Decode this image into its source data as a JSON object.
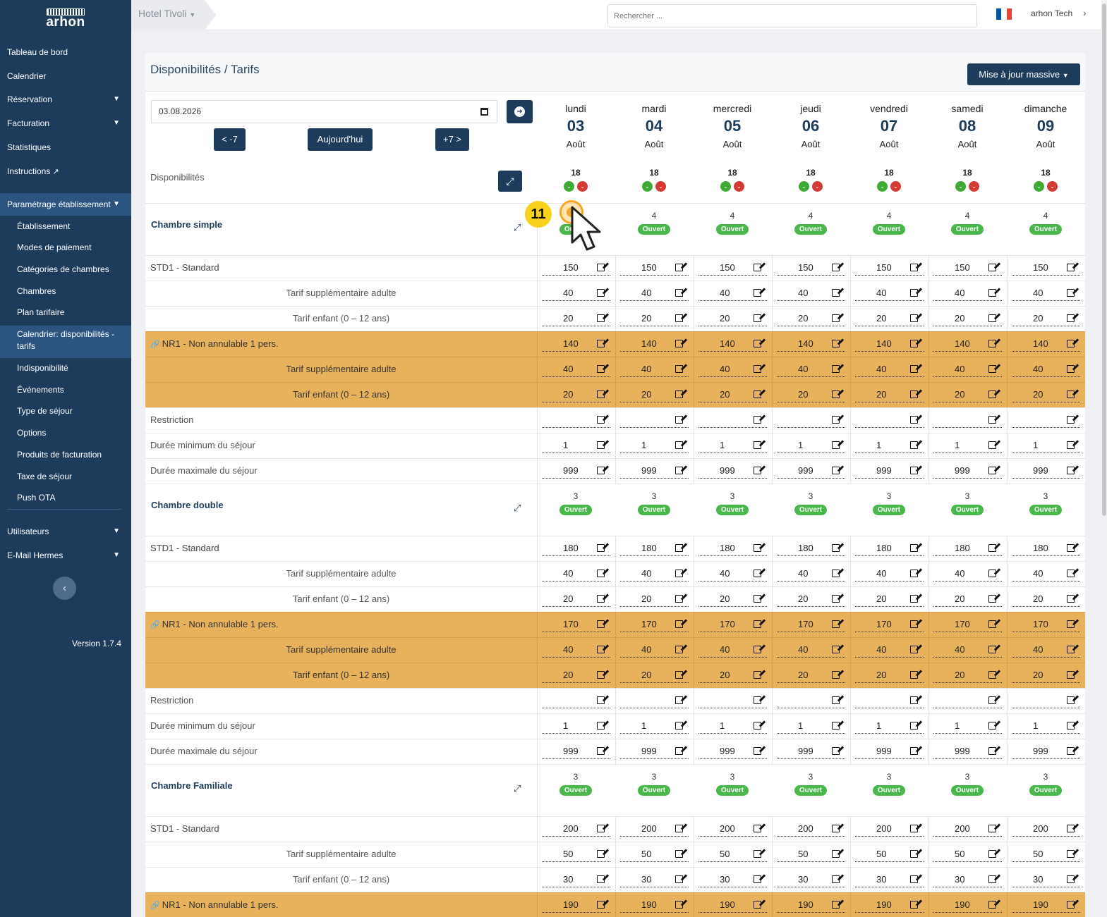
{
  "app": {
    "logo": "arhon",
    "version": "Version 1.7.4"
  },
  "sidebar": {
    "items": [
      {
        "label": "Tableau de bord"
      },
      {
        "label": "Calendrier"
      },
      {
        "label": "Réservation",
        "expandable": true
      },
      {
        "label": "Facturation",
        "expandable": true
      },
      {
        "label": "Statistiques"
      },
      {
        "label": "Instructions",
        "external": true
      }
    ],
    "section": {
      "label": "Paramétrage établissement",
      "expanded": true
    },
    "subitems": [
      {
        "label": "Établissement"
      },
      {
        "label": "Modes de paiement"
      },
      {
        "label": "Catégories de chambres"
      },
      {
        "label": "Chambres"
      },
      {
        "label": "Plan tarifaire"
      },
      {
        "label": "Calendrier: disponibilités - tarifs",
        "active": true
      },
      {
        "label": "Indisponibilité"
      },
      {
        "label": "Événements"
      },
      {
        "label": "Type de séjour"
      },
      {
        "label": "Options"
      },
      {
        "label": "Produits de facturation"
      },
      {
        "label": "Taxe de séjour"
      },
      {
        "label": "Push OTA"
      }
    ],
    "bottom_items": [
      {
        "label": "Utilisateurs",
        "expandable": true
      },
      {
        "label": "E-Mail Hermes",
        "expandable": true
      }
    ]
  },
  "topbar": {
    "hotel": "Hotel Tivoli",
    "search_placeholder": "Rechercher ...",
    "user": "arhon Tech",
    "flag_colors": [
      "#0055a4",
      "#ffffff",
      "#ef4135"
    ]
  },
  "page": {
    "title": "Disponibilités / Tarifs",
    "mass_update": "Mise à jour massive",
    "date": "03.08.2026",
    "prev": "< -7",
    "today": "Aujourd'hui",
    "next": "+7 >",
    "dispo_label": "Disponibilités",
    "status_open": "Ouvert"
  },
  "days": [
    {
      "name": "lundi",
      "num": "03",
      "month": "Août",
      "dispo": "18"
    },
    {
      "name": "mardi",
      "num": "04",
      "month": "Août",
      "dispo": "18"
    },
    {
      "name": "mercredi",
      "num": "05",
      "month": "Août",
      "dispo": "18"
    },
    {
      "name": "jeudi",
      "num": "06",
      "month": "Août",
      "dispo": "18"
    },
    {
      "name": "vendredi",
      "num": "07",
      "month": "Août",
      "dispo": "18"
    },
    {
      "name": "samedi",
      "num": "08",
      "month": "Août",
      "dispo": "18"
    },
    {
      "name": "dimanche",
      "num": "09",
      "month": "Août",
      "dispo": "18"
    }
  ],
  "rooms": [
    {
      "name": "Chambre simple",
      "counts": [
        "",
        "4",
        "4",
        "4",
        "4",
        "4",
        "4"
      ],
      "rows": [
        {
          "label": "STD1 - Standard",
          "type": "rate",
          "values": [
            "150",
            "150",
            "150",
            "150",
            "150",
            "150",
            "150"
          ]
        },
        {
          "label": "Tarif supplémentaire adulte",
          "type": "sub",
          "values": [
            "40",
            "40",
            "40",
            "40",
            "40",
            "40",
            "40"
          ]
        },
        {
          "label": "Tarif enfant (0 – 12 ans)",
          "type": "sub",
          "values": [
            "20",
            "20",
            "20",
            "20",
            "20",
            "20",
            "20"
          ]
        },
        {
          "label": "NR1 - Non annulable 1 pers.",
          "type": "rate",
          "linked": true,
          "orange": true,
          "values": [
            "140",
            "140",
            "140",
            "140",
            "140",
            "140",
            "140"
          ]
        },
        {
          "label": "Tarif supplémentaire adulte",
          "type": "sub",
          "orange": true,
          "values": [
            "40",
            "40",
            "40",
            "40",
            "40",
            "40",
            "40"
          ]
        },
        {
          "label": "Tarif enfant (0 – 12 ans)",
          "type": "sub",
          "orange": true,
          "values": [
            "20",
            "20",
            "20",
            "20",
            "20",
            "20",
            "20"
          ]
        },
        {
          "label": "Restriction",
          "type": "rest",
          "values": [
            "",
            "",
            "",
            "",
            "",
            "",
            ""
          ]
        },
        {
          "label": "Durée minimum du séjour",
          "type": "rest",
          "values": [
            "1",
            "1",
            "1",
            "1",
            "1",
            "1",
            "1"
          ]
        },
        {
          "label": "Durée maximale du séjour",
          "type": "rest",
          "values": [
            "999",
            "999",
            "999",
            "999",
            "999",
            "999",
            "999"
          ]
        }
      ]
    },
    {
      "name": "Chambre double",
      "counts": [
        "3",
        "3",
        "3",
        "3",
        "3",
        "3",
        "3"
      ],
      "rows": [
        {
          "label": "STD1 - Standard",
          "type": "rate",
          "values": [
            "180",
            "180",
            "180",
            "180",
            "180",
            "180",
            "180"
          ]
        },
        {
          "label": "Tarif supplémentaire adulte",
          "type": "sub",
          "values": [
            "40",
            "40",
            "40",
            "40",
            "40",
            "40",
            "40"
          ]
        },
        {
          "label": "Tarif enfant (0 – 12 ans)",
          "type": "sub",
          "values": [
            "20",
            "20",
            "20",
            "20",
            "20",
            "20",
            "20"
          ]
        },
        {
          "label": "NR1 - Non annulable 1 pers.",
          "type": "rate",
          "linked": true,
          "orange": true,
          "values": [
            "170",
            "170",
            "170",
            "170",
            "170",
            "170",
            "170"
          ]
        },
        {
          "label": "Tarif supplémentaire adulte",
          "type": "sub",
          "orange": true,
          "values": [
            "40",
            "40",
            "40",
            "40",
            "40",
            "40",
            "40"
          ]
        },
        {
          "label": "Tarif enfant (0 – 12 ans)",
          "type": "sub",
          "orange": true,
          "values": [
            "20",
            "20",
            "20",
            "20",
            "20",
            "20",
            "20"
          ]
        },
        {
          "label": "Restriction",
          "type": "rest",
          "values": [
            "",
            "",
            "",
            "",
            "",
            "",
            ""
          ]
        },
        {
          "label": "Durée minimum du séjour",
          "type": "rest",
          "values": [
            "1",
            "1",
            "1",
            "1",
            "1",
            "1",
            "1"
          ]
        },
        {
          "label": "Durée maximale du séjour",
          "type": "rest",
          "values": [
            "999",
            "999",
            "999",
            "999",
            "999",
            "999",
            "999"
          ]
        }
      ]
    },
    {
      "name": "Chambre Familiale",
      "counts": [
        "3",
        "3",
        "3",
        "3",
        "3",
        "3",
        "3"
      ],
      "rows": [
        {
          "label": "STD1 - Standard",
          "type": "rate",
          "values": [
            "200",
            "200",
            "200",
            "200",
            "200",
            "200",
            "200"
          ]
        },
        {
          "label": "Tarif supplémentaire adulte",
          "type": "sub",
          "values": [
            "50",
            "50",
            "50",
            "50",
            "50",
            "50",
            "50"
          ]
        },
        {
          "label": "Tarif enfant (0 – 12 ans)",
          "type": "sub",
          "values": [
            "30",
            "30",
            "30",
            "30",
            "30",
            "30",
            "30"
          ]
        },
        {
          "label": "NR1 - Non annulable 1 pers.",
          "type": "rate",
          "linked": true,
          "orange": true,
          "values": [
            "190",
            "190",
            "190",
            "190",
            "190",
            "190",
            "190"
          ]
        }
      ]
    }
  ],
  "annotation": {
    "step": "11"
  }
}
